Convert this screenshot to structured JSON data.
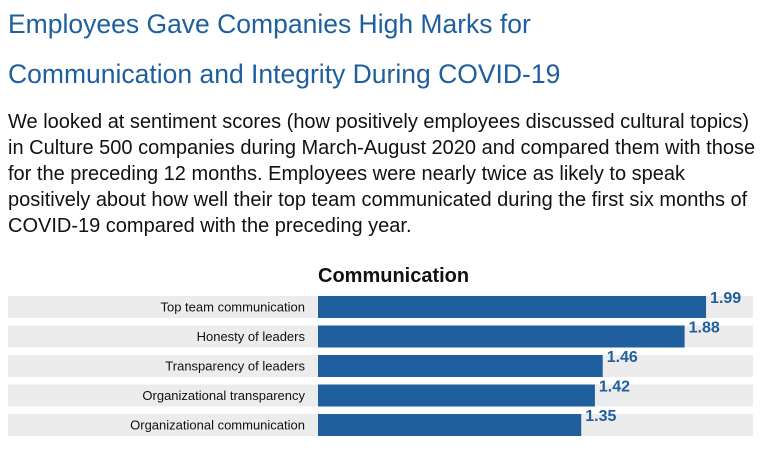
{
  "heading": {
    "line1": "Employees Gave Companies High Marks for",
    "line2": "Communication and Integrity During COVID-19"
  },
  "description": "We looked at sentiment scores (how positively employees discussed cultural topics) in Culture 500 companies during March-August 2020 and compared them with those for the preceding 12 months. Employees were nearly twice as likely to speak positively about how well their top team communicated during the first six months of COVID-19 compared with the preceding year.",
  "colors": {
    "bar": "#1f5f9e",
    "row_band": "#ececec",
    "title": "#1f5f9e"
  },
  "chart_data": {
    "type": "bar",
    "orientation": "horizontal",
    "title": "Communication",
    "categories": [
      "Top team communication",
      "Honesty of leaders",
      "Transparency of leaders",
      "Organizational transparency",
      "Organizational communication"
    ],
    "values": [
      1.99,
      1.88,
      1.46,
      1.42,
      1.35
    ],
    "data_labels": [
      "1.99",
      "1.88",
      "1.46",
      "1.42",
      "1.35"
    ],
    "xlim": [
      0,
      2.1
    ],
    "grid": false,
    "legend": "none"
  }
}
